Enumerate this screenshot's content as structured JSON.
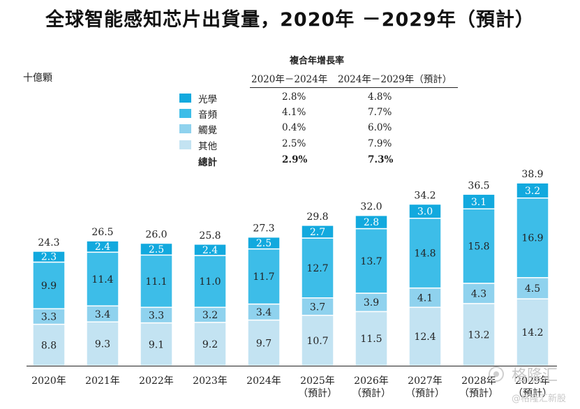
{
  "chart_data": {
    "type": "bar",
    "stacked": true,
    "title": "全球智能感知芯片出貨量，2020年 －2029年（預計）",
    "ylabel": "十億顆",
    "ylim": [
      0,
      40
    ],
    "grid": false,
    "categories": [
      [
        "2020年"
      ],
      [
        "2021年"
      ],
      [
        "2022年"
      ],
      [
        "2023年"
      ],
      [
        "2024年"
      ],
      [
        "2025年",
        "（預計）"
      ],
      [
        "2026年",
        "（預計）"
      ],
      [
        "2027年",
        "（預計）"
      ],
      [
        "2028年",
        "（預計）"
      ],
      [
        "2029年",
        "（預計）"
      ]
    ],
    "series": [
      {
        "name": "其他",
        "color": "#c3e3f2",
        "values": [
          8.8,
          9.3,
          9.1,
          9.2,
          9.7,
          10.7,
          11.5,
          12.4,
          13.2,
          14.2
        ]
      },
      {
        "name": "觸覺",
        "color": "#8fd2ee",
        "values": [
          3.3,
          3.4,
          3.3,
          3.2,
          3.4,
          3.7,
          3.9,
          4.1,
          4.3,
          4.5
        ]
      },
      {
        "name": "音頻",
        "color": "#3dbde8",
        "values": [
          9.9,
          11.4,
          11.1,
          11.0,
          11.7,
          12.7,
          13.7,
          14.8,
          15.8,
          16.9
        ]
      },
      {
        "name": "光學",
        "color": "#12a9de",
        "values": [
          2.3,
          2.4,
          2.5,
          2.4,
          2.5,
          2.7,
          2.8,
          3.0,
          3.1,
          3.2
        ]
      }
    ],
    "totals": [
      24.3,
      26.5,
      26.0,
      25.8,
      27.3,
      29.8,
      32.0,
      34.2,
      36.5,
      38.9
    ],
    "cagr_table": {
      "header": "複合年增長率",
      "periods": [
        "2020年－2024年",
        "2024年－2029年（預計）"
      ],
      "rows": [
        {
          "name": "光學",
          "cagr_2020_2024": "2.8%",
          "cagr_2024_2029": "4.8%",
          "color": "#12a9de"
        },
        {
          "name": "音頻",
          "cagr_2020_2024": "4.1%",
          "cagr_2024_2029": "7.7%",
          "color": "#3dbde8"
        },
        {
          "name": "觸覺",
          "cagr_2020_2024": "0.4%",
          "cagr_2024_2029": "6.0%",
          "color": "#8fd2ee"
        },
        {
          "name": "其他",
          "cagr_2020_2024": "2.5%",
          "cagr_2024_2029": "7.9%",
          "color": "#c3e3f2"
        }
      ],
      "total": {
        "name": "總計",
        "cagr_2020_2024": "2.9%",
        "cagr_2024_2029": "7.3%"
      }
    }
  },
  "watermark": {
    "name": "格隆汇",
    "sub": "@格隆汇新股",
    "icon": "gelonghui-logo-icon"
  }
}
